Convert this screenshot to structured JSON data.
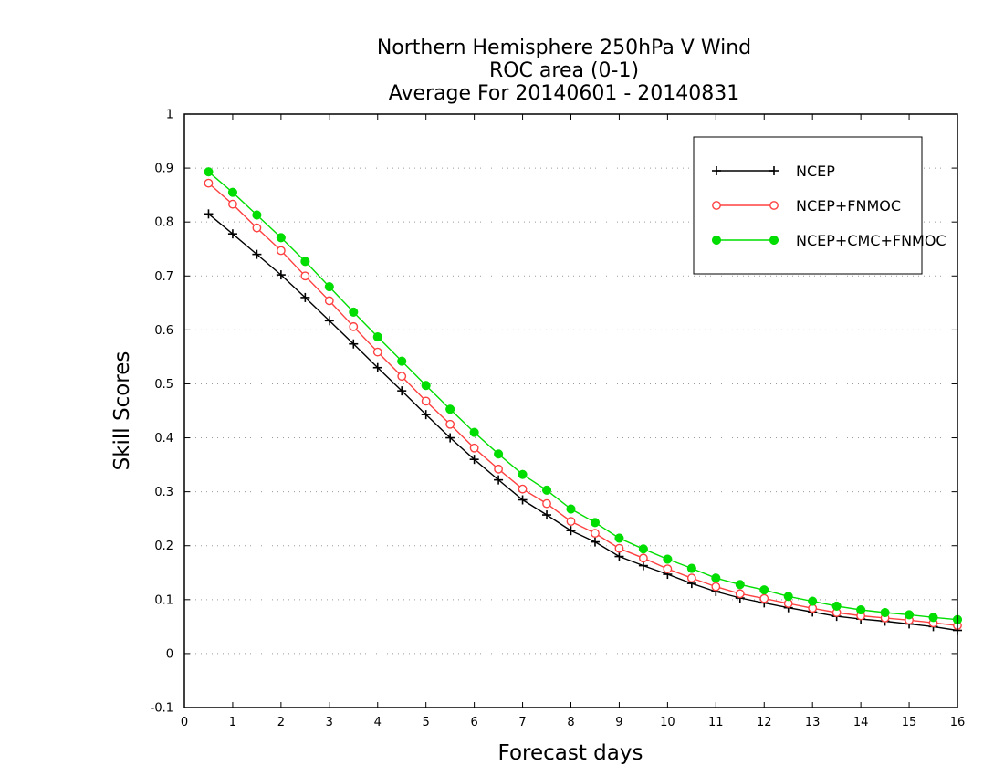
{
  "chart_data": {
    "type": "line",
    "title_lines": [
      "Northern Hemisphere 250hPa V Wind",
      "ROC area (0-1)",
      "Average For 20140601 - 20140831"
    ],
    "xlabel": "Forecast days",
    "ylabel": "Skill Scores",
    "xlim": [
      0,
      16
    ],
    "ylim": [
      -0.1,
      1
    ],
    "xticks": [
      0,
      1,
      2,
      3,
      4,
      5,
      6,
      7,
      8,
      9,
      10,
      11,
      12,
      13,
      14,
      15,
      16
    ],
    "xtick_labels": [
      "0",
      "1",
      "2",
      "3",
      "4",
      "5",
      "6",
      "7",
      "8",
      "9",
      "10",
      "11",
      "12",
      "13",
      "14",
      "15",
      "16"
    ],
    "yticks": [
      -0.1,
      0,
      0.1,
      0.2,
      0.3,
      0.4,
      0.5,
      0.6,
      0.7,
      0.8,
      0.9,
      1
    ],
    "ytick_labels": [
      "-0.1",
      "0",
      "0.1",
      "0.2",
      "0.3",
      "0.4",
      "0.5",
      "0.6",
      "0.7",
      "0.8",
      "0.9",
      "1"
    ],
    "grid": true,
    "legend_position": "top-right",
    "x": [
      0.5,
      1,
      1.5,
      2,
      2.5,
      3,
      3.5,
      4,
      4.5,
      5,
      5.5,
      6,
      6.5,
      7,
      7.5,
      8,
      8.5,
      9,
      9.5,
      10,
      10.5,
      11,
      11.5,
      12,
      12.5,
      13,
      13.5,
      14,
      14.5,
      15,
      15.5,
      16
    ],
    "series": [
      {
        "name": "NCEP",
        "color": "#000000",
        "marker": "plus",
        "values": [
          0.815,
          0.778,
          0.74,
          0.702,
          0.66,
          0.617,
          0.574,
          0.53,
          0.487,
          0.443,
          0.4,
          0.36,
          0.322,
          0.285,
          0.257,
          0.228,
          0.207,
          0.18,
          0.163,
          0.147,
          0.13,
          0.115,
          0.103,
          0.094,
          0.085,
          0.077,
          0.069,
          0.064,
          0.06,
          0.055,
          0.05,
          0.043
        ]
      },
      {
        "name": "NCEP+FNMOC",
        "color": "#ff4040",
        "marker": "open-circle",
        "values": [
          0.872,
          0.833,
          0.789,
          0.747,
          0.7,
          0.654,
          0.606,
          0.559,
          0.514,
          0.468,
          0.425,
          0.381,
          0.342,
          0.305,
          0.278,
          0.245,
          0.223,
          0.195,
          0.177,
          0.157,
          0.14,
          0.124,
          0.111,
          0.102,
          0.093,
          0.084,
          0.076,
          0.07,
          0.066,
          0.062,
          0.057,
          0.052
        ]
      },
      {
        "name": "NCEP+CMC+FNMOC",
        "color": "#00dd00",
        "marker": "filled-circle",
        "values": [
          0.893,
          0.855,
          0.813,
          0.771,
          0.727,
          0.68,
          0.633,
          0.587,
          0.542,
          0.497,
          0.453,
          0.41,
          0.37,
          0.332,
          0.303,
          0.268,
          0.243,
          0.214,
          0.194,
          0.175,
          0.158,
          0.14,
          0.128,
          0.118,
          0.106,
          0.097,
          0.088,
          0.081,
          0.076,
          0.072,
          0.067,
          0.063
        ]
      }
    ]
  }
}
